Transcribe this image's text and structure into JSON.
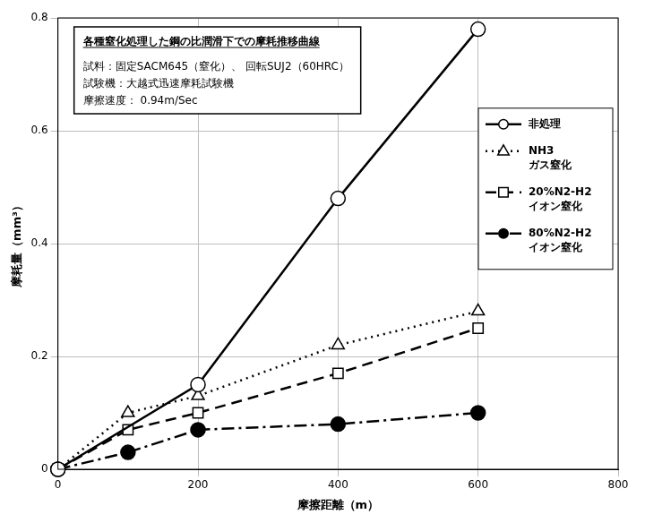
{
  "chart_data": {
    "type": "line",
    "title": "各種窒化処理した鋼の比潤滑下での摩耗推移曲線",
    "annotations": [
      "試料：固定SACM645（窒化）、 回転SUJ2（60HRC）",
      "試験機：大越式迅速摩耗試験機",
      "摩擦速度： 0.94m/Sec"
    ],
    "x_label": "摩擦距離（m）",
    "y_label": "摩耗量（mm³）",
    "xlim": [
      0,
      800
    ],
    "xticks": [
      0,
      200,
      400,
      600,
      800
    ],
    "ylim": [
      0,
      0.8
    ],
    "yticks": [
      0,
      0.2,
      0.4,
      0.6,
      0.8
    ],
    "grid": true,
    "legend": "right",
    "series": [
      {
        "name": "非処理",
        "color": "#000000",
        "marker": "open_circle",
        "line_style": "solid",
        "x": [
          0,
          200,
          400,
          600
        ],
        "values": [
          0,
          0.15,
          0.48,
          0.78
        ]
      },
      {
        "name": "NH3 ガス窒化",
        "color": "#000000",
        "marker": "open_triangle",
        "line_style": "dotted",
        "x": [
          0,
          100,
          200,
          400,
          600
        ],
        "values": [
          0,
          0.1,
          0.13,
          0.22,
          0.28
        ]
      },
      {
        "name": "20%N2-H2 イオン窒化",
        "color": "#000000",
        "marker": "open_square",
        "line_style": "dashed",
        "x": [
          0,
          100,
          200,
          400,
          600
        ],
        "values": [
          0,
          0.07,
          0.1,
          0.17,
          0.25
        ]
      },
      {
        "name": "80%N2-H2 イオン窒化",
        "color": "#000000",
        "marker": "filled_circle",
        "line_style": "dashdot",
        "x": [
          0,
          100,
          200,
          400,
          600
        ],
        "values": [
          0,
          0.03,
          0.07,
          0.08,
          0.1
        ]
      }
    ]
  }
}
